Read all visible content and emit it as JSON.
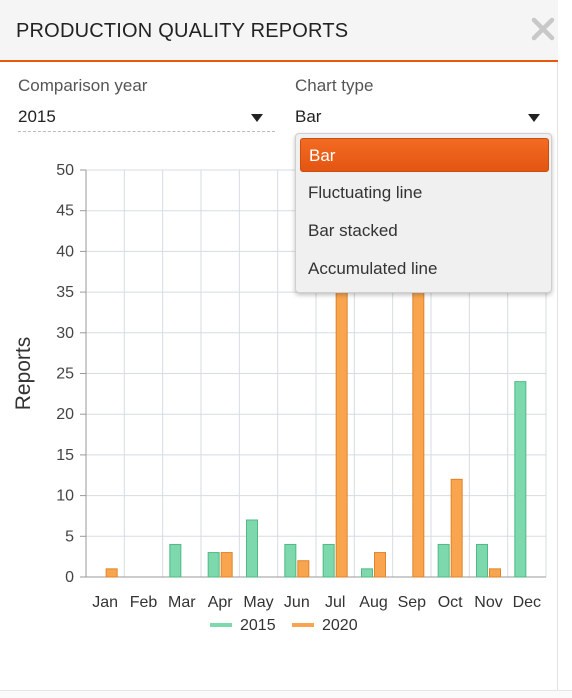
{
  "header": {
    "title": "PRODUCTION QUALITY REPORTS",
    "close_icon": "close-icon"
  },
  "controls": {
    "comparison_year": {
      "label": "Comparison year",
      "value": "2015"
    },
    "chart_type": {
      "label": "Chart type",
      "value": "Bar"
    }
  },
  "dropdown": {
    "options": [
      "Bar",
      "Fluctuating line",
      "Bar stacked",
      "Accumulated line"
    ],
    "selected": "Bar"
  },
  "colors": {
    "accent": "#e8590c",
    "series_2015": "#7dd9ad",
    "series_2020": "#f9a54f"
  },
  "chart_data": {
    "type": "bar",
    "ylabel": "Reports",
    "ylim": [
      0,
      50
    ],
    "yticks": [
      0,
      5,
      10,
      15,
      20,
      25,
      30,
      35,
      40,
      45,
      50
    ],
    "grid": true,
    "legend_position": "bottom",
    "categories": [
      "Jan",
      "Feb",
      "Mar",
      "Apr",
      "May",
      "Jun",
      "Jul",
      "Aug",
      "Sep",
      "Oct",
      "Nov",
      "Dec"
    ],
    "series": [
      {
        "name": "2015",
        "values": [
          0,
          0,
          4,
          3,
          7,
          4,
          4,
          1,
          0,
          4,
          4,
          24
        ]
      },
      {
        "name": "2020",
        "values": [
          1,
          0,
          0,
          3,
          0,
          2,
          38,
          3,
          38,
          12,
          1,
          0
        ]
      }
    ]
  }
}
